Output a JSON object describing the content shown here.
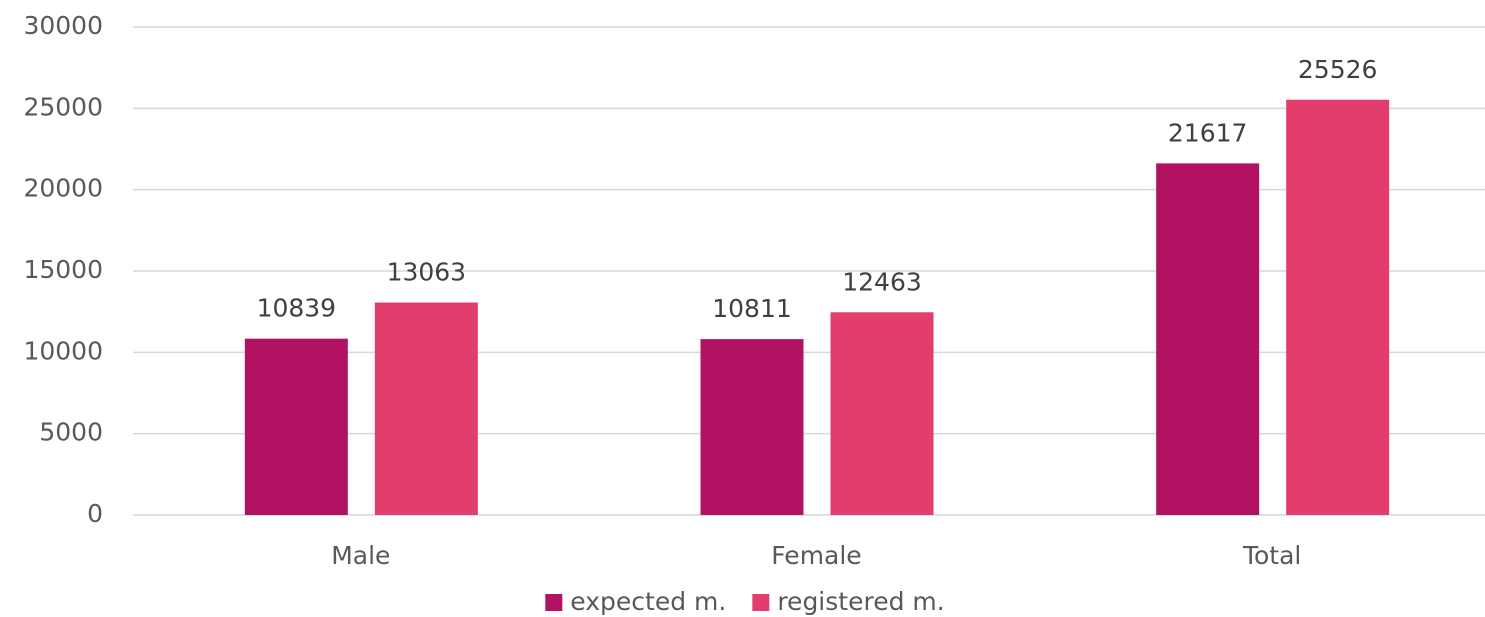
{
  "chart_data": {
    "type": "bar",
    "categories": [
      "Male",
      "Female",
      "Total"
    ],
    "series": [
      {
        "name": "expected m.",
        "color": "#b31263",
        "values": [
          10839,
          10811,
          21617
        ]
      },
      {
        "name": "registered m.",
        "color": "#e23d6d",
        "values": [
          13063,
          12463,
          25526
        ]
      }
    ],
    "ylim": [
      0,
      30000
    ],
    "yticks": [
      0,
      5000,
      10000,
      15000,
      20000,
      25000,
      30000
    ],
    "grid": true,
    "legend": "bottom",
    "data_labels": true
  }
}
